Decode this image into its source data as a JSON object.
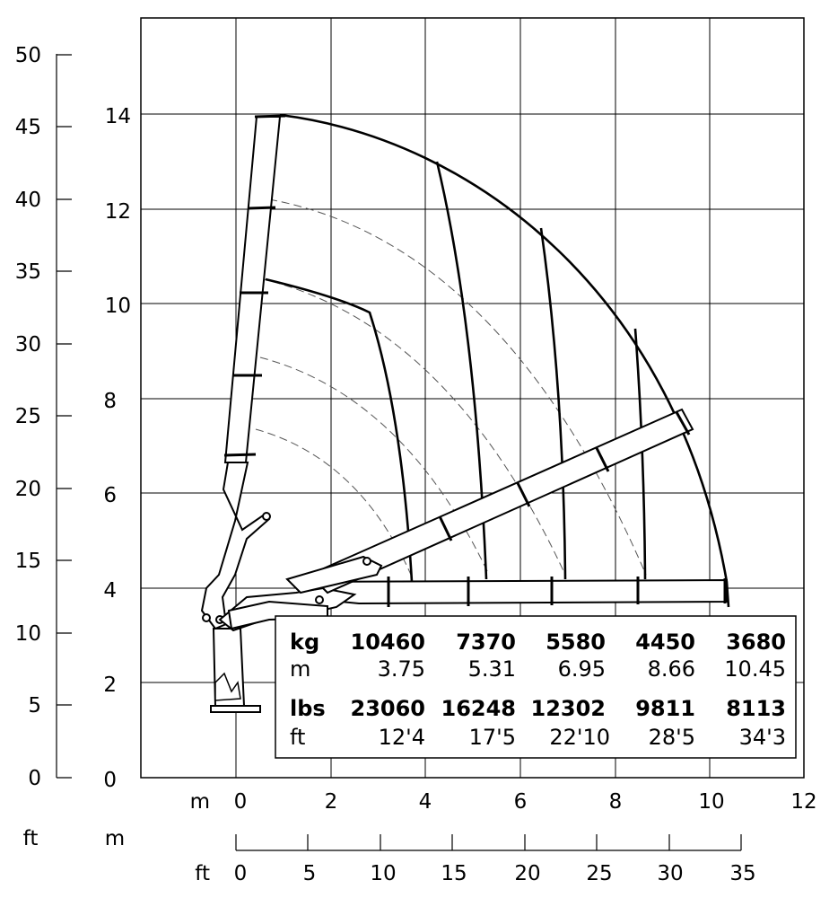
{
  "units": {
    "ft": "ft",
    "m": "m"
  },
  "left_scale_ft": [
    "0",
    "5",
    "10",
    "15",
    "20",
    "25",
    "30",
    "35",
    "40",
    "45",
    "50"
  ],
  "inner_scale_m": [
    "0",
    "2",
    "4",
    "6",
    "8",
    "10",
    "12",
    "14"
  ],
  "bottom_scale_m": [
    "0",
    "2",
    "4",
    "6",
    "8",
    "10",
    "12"
  ],
  "bottom_scale_ft": [
    "0",
    "5",
    "10",
    "15",
    "20",
    "25",
    "30",
    "35"
  ],
  "load_table": {
    "kg_label": "kg",
    "m_label": "m",
    "lbs_label": "lbs",
    "ft_label": "ft",
    "kg": [
      "10460",
      "7370",
      "5580",
      "4450",
      "3680"
    ],
    "m": [
      "3.75",
      "5.31",
      "6.95",
      "8.66",
      "10.45"
    ],
    "lbs": [
      "23060",
      "16248",
      "12302",
      "9811",
      "8113"
    ],
    "ft": [
      "12'4",
      "17'5",
      "22'10",
      "28'5",
      "34'3"
    ]
  },
  "chart_data": {
    "type": "line",
    "x_unit": "m",
    "y_unit": "m",
    "xlim": [
      0,
      12
    ],
    "ylim": [
      0,
      15
    ],
    "grid": true,
    "outer_envelope": [
      [
        1.0,
        14.0
      ],
      [
        4.2,
        13.0
      ],
      [
        6.5,
        11.55
      ],
      [
        8.5,
        9.5
      ],
      [
        9.6,
        7.6
      ],
      [
        10.2,
        5.5
      ],
      [
        10.45,
        3.75
      ]
    ],
    "outreach_curves": [
      {
        "outreach_m": 3.75,
        "points": [
          [
            0.6,
            10.5
          ],
          [
            2.8,
            9.8
          ],
          [
            3.5,
            7.0
          ],
          [
            3.75,
            4.1
          ]
        ]
      },
      {
        "outreach_m": 5.31,
        "points": [
          [
            4.2,
            13.0
          ],
          [
            5.0,
            9.0
          ],
          [
            5.31,
            4.1
          ]
        ]
      },
      {
        "outreach_m": 6.95,
        "points": [
          [
            6.5,
            11.55
          ],
          [
            6.95,
            7.0
          ],
          [
            6.95,
            4.1
          ]
        ]
      },
      {
        "outreach_m": 8.66,
        "points": [
          [
            8.5,
            9.5
          ],
          [
            8.66,
            6.0
          ],
          [
            8.66,
            4.1
          ]
        ]
      },
      {
        "outreach_m": 10.45,
        "points": [
          [
            10.45,
            3.75
          ]
        ]
      }
    ]
  }
}
